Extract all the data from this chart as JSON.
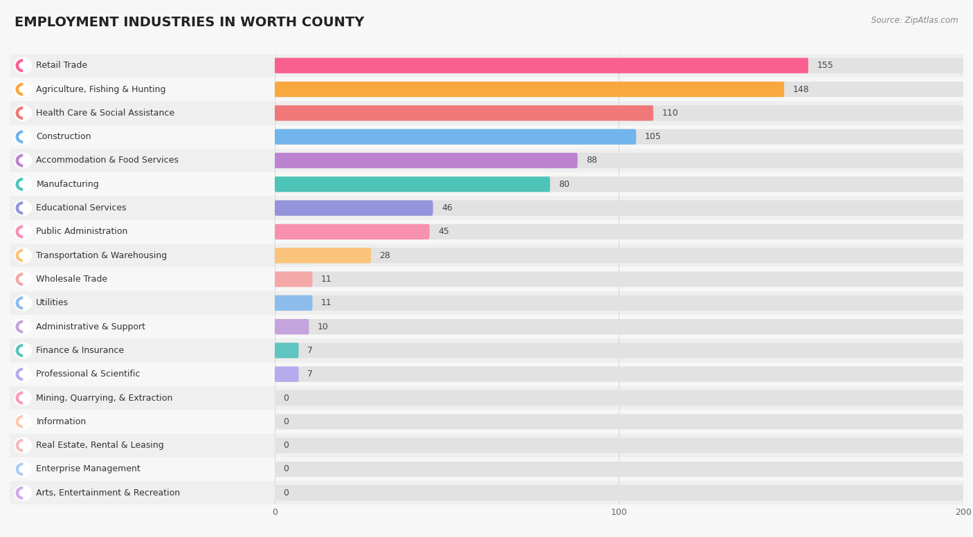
{
  "title": "EMPLOYMENT INDUSTRIES IN WORTH COUNTY",
  "source": "Source: ZipAtlas.com",
  "categories": [
    "Retail Trade",
    "Agriculture, Fishing & Hunting",
    "Health Care & Social Assistance",
    "Construction",
    "Accommodation & Food Services",
    "Manufacturing",
    "Educational Services",
    "Public Administration",
    "Transportation & Warehousing",
    "Wholesale Trade",
    "Utilities",
    "Administrative & Support",
    "Finance & Insurance",
    "Professional & Scientific",
    "Mining, Quarrying, & Extraction",
    "Information",
    "Real Estate, Rental & Leasing",
    "Enterprise Management",
    "Arts, Entertainment & Recreation"
  ],
  "values": [
    155,
    148,
    110,
    105,
    88,
    80,
    46,
    45,
    28,
    11,
    11,
    10,
    7,
    7,
    0,
    0,
    0,
    0,
    0
  ],
  "bar_colors": [
    "#F96090",
    "#F9A840",
    "#F07878",
    "#72B4EC",
    "#BC84D0",
    "#4EC4B8",
    "#9494DC",
    "#F890B0",
    "#FAC47C",
    "#F4A8A8",
    "#8CBCEC",
    "#C4A4DC",
    "#60C4C0",
    "#B4ACEC",
    "#FA9CBC",
    "#FACCAC",
    "#F4BCBC",
    "#ACCCF4",
    "#CCACEC"
  ],
  "xlim": [
    0,
    200
  ],
  "background_color": "#f7f7f7",
  "row_colors": [
    "#efefef",
    "#f7f7f7"
  ],
  "grid_color": "#d8d8d8",
  "title_fontsize": 14,
  "label_fontsize": 9,
  "value_fontsize": 9
}
